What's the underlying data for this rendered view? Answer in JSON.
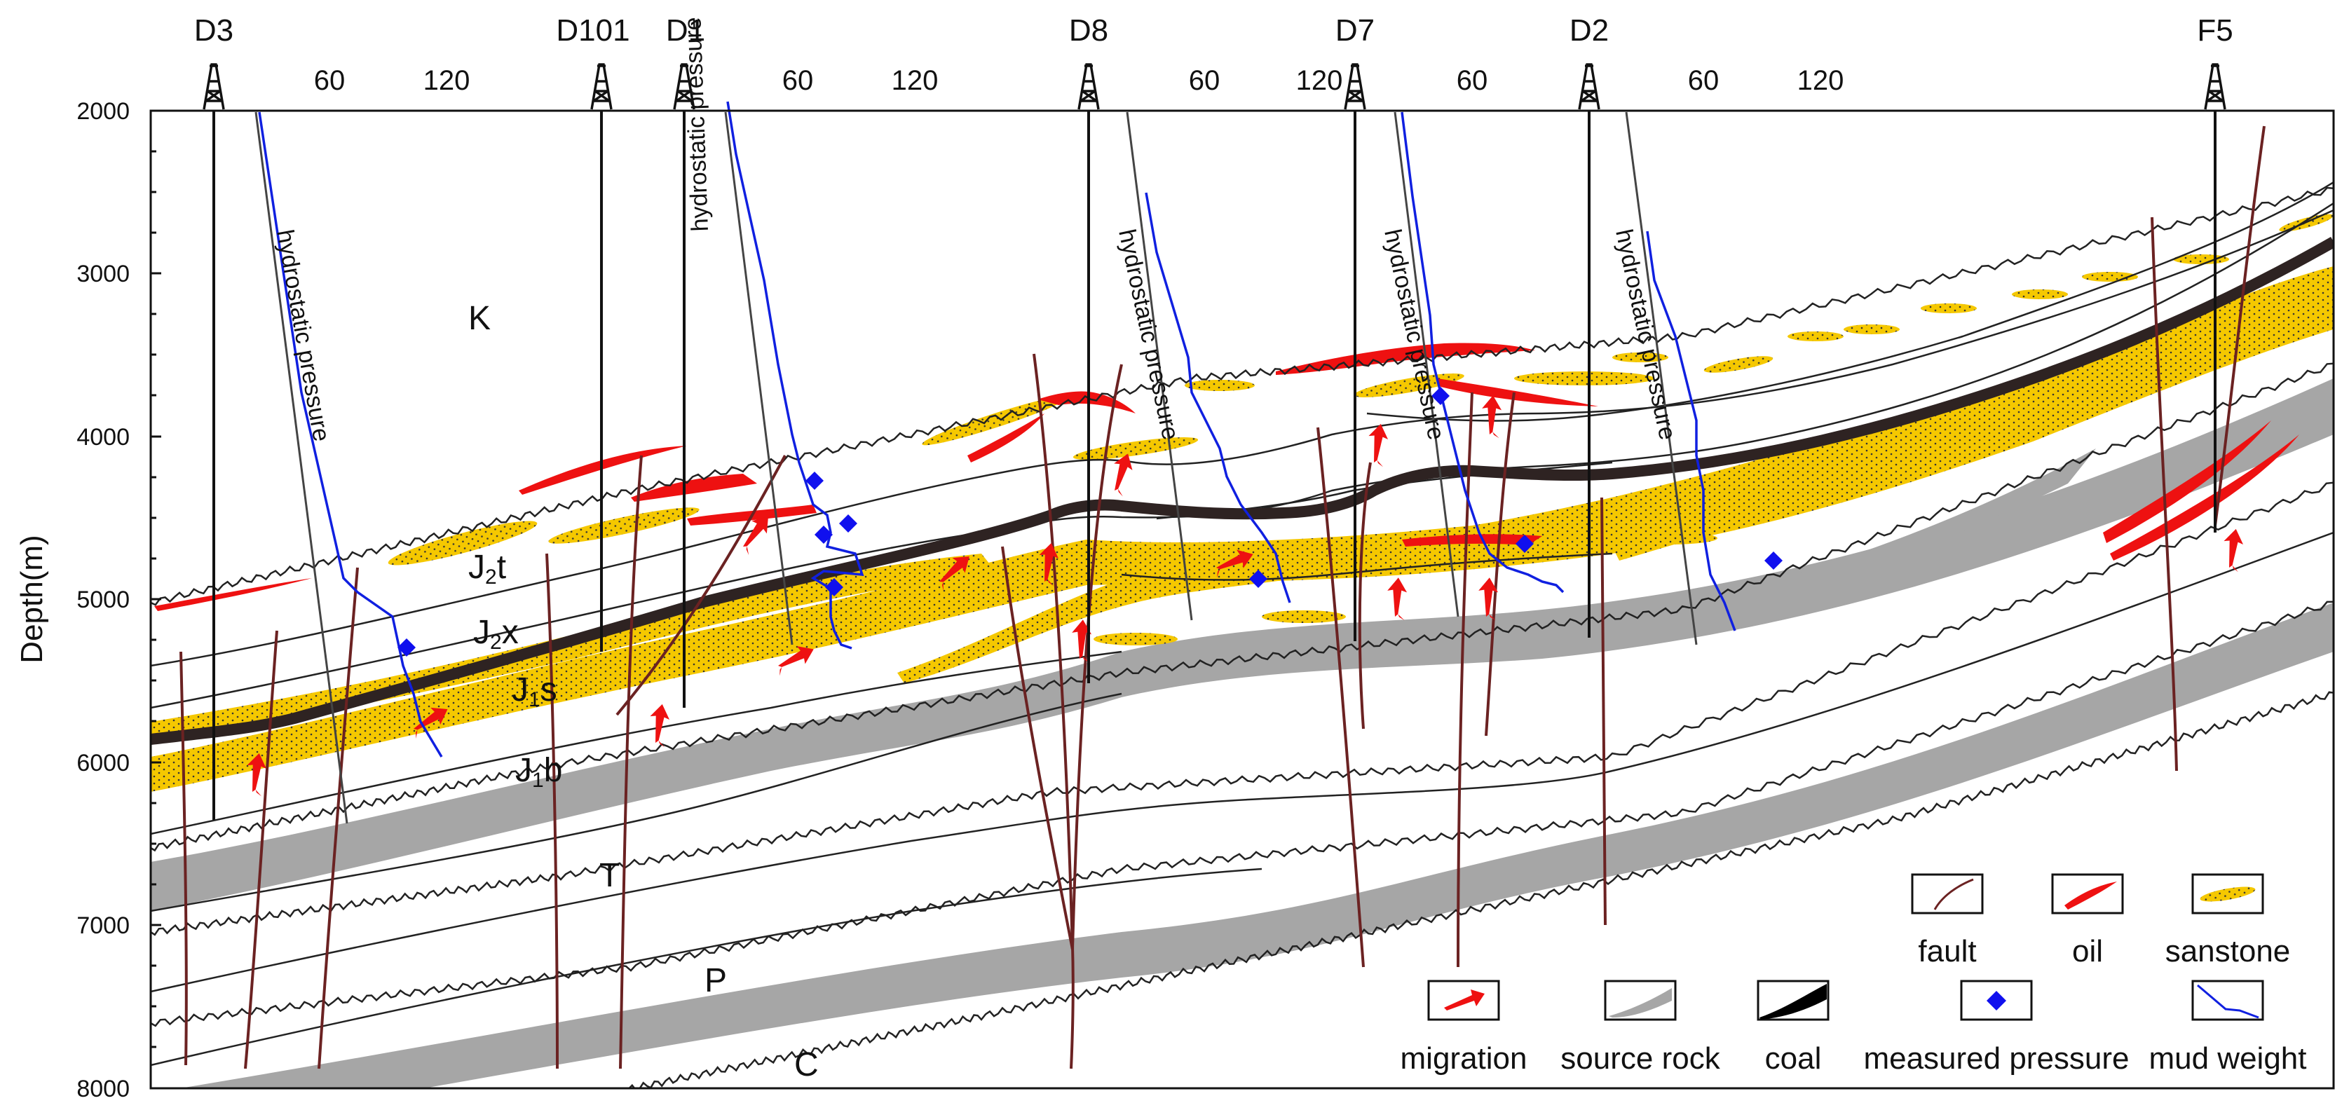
{
  "wells": [
    {
      "name": "D3"
    },
    {
      "name": "D101"
    },
    {
      "name": "D1"
    },
    {
      "name": "D8"
    },
    {
      "name": "D7"
    },
    {
      "name": "D2"
    },
    {
      "name": "F5"
    }
  ],
  "pressure_ticks": [
    "60",
    "120"
  ],
  "axis": {
    "title": "Depth(m)",
    "ticks": [
      "2000",
      "3000",
      "4000",
      "5000",
      "6000",
      "7000",
      "8000"
    ]
  },
  "units": [
    {
      "base": "K",
      "sub": ""
    },
    {
      "base": "J",
      "sub": "2",
      "suffix": "t"
    },
    {
      "base": "J",
      "sub": "2",
      "suffix": "x"
    },
    {
      "base": "J",
      "sub": "1",
      "suffix": "s"
    },
    {
      "base": "J",
      "sub": "1",
      "suffix": "b"
    },
    {
      "base": "T",
      "sub": ""
    },
    {
      "base": "P",
      "sub": ""
    },
    {
      "base": "C",
      "sub": ""
    }
  ],
  "hydrostatic_label": "hydrostatic pressure",
  "legend": {
    "fault": "fault",
    "oil": "oil",
    "sandstone": "sanstone",
    "migration": "migration",
    "source_rock": "source rock",
    "coal": "coal",
    "measured_pressure": "measured pressure",
    "mud_weight": "mud weight"
  },
  "colors": {
    "sandstone": "#f5c800",
    "source_rock": "#a6a6a6",
    "coal": "#2e2322",
    "oil": "#ee1111",
    "fault": "#6b2222",
    "mud_weight": "#1020e0",
    "measured_pressure": "#1010ee"
  }
}
